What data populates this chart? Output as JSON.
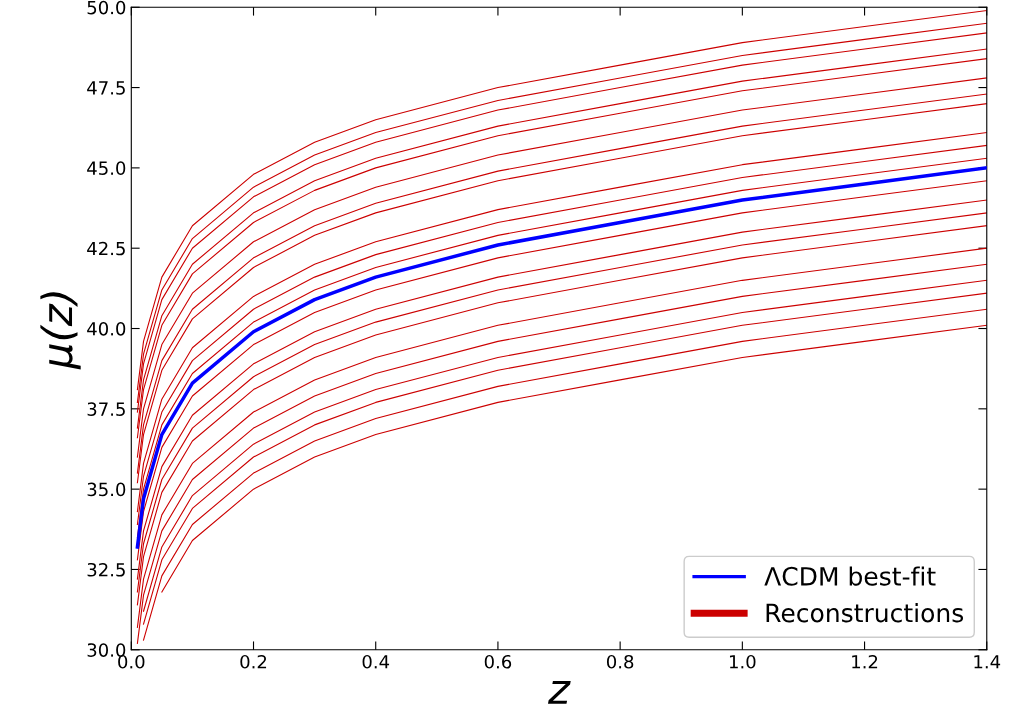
{
  "chart_data": {
    "type": "line",
    "xlabel": "z",
    "ylabel": "μ(z)",
    "x": [
      0.01,
      0.02,
      0.05,
      0.1,
      0.2,
      0.3,
      0.4,
      0.6,
      0.8,
      1.0,
      1.2,
      1.4
    ],
    "xlim": [
      0,
      1.4
    ],
    "ylim": [
      30,
      50
    ],
    "xticks": [
      {
        "value": 0,
        "label": "0.0"
      },
      {
        "value": 0.2,
        "label": "0.2"
      },
      {
        "value": 0.4,
        "label": "0.4"
      },
      {
        "value": 0.6,
        "label": "0.6"
      },
      {
        "value": 0.8,
        "label": "0.8"
      },
      {
        "value": 1.0,
        "label": "1.0"
      },
      {
        "value": 1.2,
        "label": "1.2"
      },
      {
        "value": 1.4,
        "label": "1.4"
      }
    ],
    "yticks": [
      {
        "value": 30,
        "label": "30.0"
      },
      {
        "value": 32.5,
        "label": "32.5"
      },
      {
        "value": 35,
        "label": "35.0"
      },
      {
        "value": 37.5,
        "label": "37.5"
      },
      {
        "value": 40,
        "label": "40.0"
      },
      {
        "value": 42.5,
        "label": "42.5"
      },
      {
        "value": 45,
        "label": "45.0"
      },
      {
        "value": 47.5,
        "label": "47.5"
      },
      {
        "value": 50,
        "label": "50.0"
      }
    ],
    "grid": false,
    "legend": "bottom right",
    "marker": "none",
    "line_style": "solid",
    "series": [
      {
        "name": "Reconstructions",
        "color": "#cc0000",
        "values": [
          38.1,
          39.6,
          41.6,
          43.2,
          44.8,
          45.8,
          46.5,
          47.5,
          48.2,
          48.9,
          49.4,
          49.9
        ]
      },
      {
        "color": "#cc0000",
        "values": [
          37.7,
          39.2,
          41.2,
          42.8,
          44.4,
          45.4,
          46.1,
          47.1,
          47.8,
          48.5,
          49.0,
          49.5
        ]
      },
      {
        "color": "#cc0000",
        "values": [
          37.4,
          38.9,
          40.9,
          42.5,
          44.1,
          45.1,
          45.8,
          46.8,
          47.5,
          48.2,
          48.7,
          49.2
        ]
      },
      {
        "color": "#cc0000",
        "values": [
          36.9,
          38.4,
          40.4,
          42.0,
          43.6,
          44.6,
          45.3,
          46.3,
          47.0,
          47.7,
          48.2,
          48.7
        ]
      },
      {
        "color": "#cc0000",
        "values": [
          36.6,
          38.1,
          40.1,
          41.7,
          43.3,
          44.3,
          45.0,
          46.0,
          46.7,
          47.4,
          47.9,
          48.4
        ]
      },
      {
        "color": "#cc0000",
        "values": [
          36.0,
          37.5,
          39.5,
          41.1,
          42.7,
          43.7,
          44.4,
          45.4,
          46.1,
          46.8,
          47.3,
          47.8
        ]
      },
      {
        "color": "#cc0000",
        "values": [
          35.5,
          37.0,
          39.0,
          40.6,
          42.2,
          43.2,
          43.9,
          44.9,
          45.6,
          46.3,
          46.8,
          47.3
        ]
      },
      {
        "color": "#cc0000",
        "values": [
          35.2,
          36.7,
          38.7,
          40.3,
          41.9,
          42.9,
          43.6,
          44.6,
          45.3,
          46.0,
          46.5,
          47.0
        ]
      },
      {
        "color": "#cc0000",
        "values": [
          34.3,
          35.8,
          37.8,
          39.4,
          41.0,
          42.0,
          42.7,
          43.7,
          44.4,
          45.1,
          45.6,
          46.1
        ]
      },
      {
        "color": "#cc0000",
        "values": [
          33.9,
          35.4,
          37.4,
          39.0,
          40.6,
          41.6,
          42.3,
          43.3,
          44.0,
          44.7,
          45.2,
          45.7
        ]
      },
      {
        "color": "#cc0000",
        "values": [
          33.5,
          35.0,
          37.0,
          38.6,
          40.2,
          41.2,
          41.9,
          42.9,
          43.6,
          44.3,
          44.8,
          45.3
        ]
      },
      {
        "color": "#cc0000",
        "values": [
          32.8,
          34.3,
          36.3,
          37.9,
          39.5,
          40.5,
          41.2,
          42.2,
          42.9,
          43.6,
          44.1,
          44.6
        ]
      },
      {
        "color": "#cc0000",
        "values": [
          32.2,
          33.7,
          35.7,
          37.3,
          38.9,
          39.9,
          40.6,
          41.6,
          42.3,
          43.0,
          43.5,
          44.0
        ]
      },
      {
        "color": "#cc0000",
        "values": [
          31.8,
          33.3,
          35.3,
          36.9,
          38.5,
          39.5,
          40.2,
          41.2,
          41.9,
          42.6,
          43.1,
          43.6
        ]
      },
      {
        "color": "#cc0000",
        "values": [
          31.4,
          32.9,
          34.9,
          36.5,
          38.1,
          39.1,
          39.8,
          40.8,
          41.5,
          42.2,
          42.7,
          43.2
        ]
      },
      {
        "color": "#cc0000",
        "values": [
          30.7,
          32.2,
          34.2,
          35.8,
          37.4,
          38.4,
          39.1,
          40.1,
          40.8,
          41.5,
          42.0,
          42.5
        ]
      },
      {
        "color": "#cc0000",
        "values": [
          30.2,
          31.7,
          33.7,
          35.3,
          36.9,
          37.9,
          38.6,
          39.6,
          40.3,
          41.0,
          41.5,
          42.0
        ]
      },
      {
        "color": "#cc0000",
        "values": [
          null,
          31.2,
          33.2,
          34.8,
          36.4,
          37.4,
          38.1,
          39.1,
          39.8,
          40.5,
          41.0,
          41.5
        ]
      },
      {
        "color": "#cc0000",
        "values": [
          null,
          30.8,
          32.8,
          34.4,
          36.0,
          37.0,
          37.7,
          38.7,
          39.4,
          40.1,
          40.6,
          41.1
        ]
      },
      {
        "color": "#cc0000",
        "values": [
          null,
          30.3,
          32.3,
          33.9,
          35.5,
          36.5,
          37.2,
          38.2,
          38.9,
          39.6,
          40.1,
          40.6
        ]
      },
      {
        "color": "#cc0000",
        "values": [
          null,
          null,
          31.8,
          33.4,
          35.0,
          36.0,
          36.7,
          37.7,
          38.4,
          39.1,
          39.6,
          40.1
        ]
      },
      {
        "name": "ΛCDM best-fit",
        "color": "#0000ff",
        "values": [
          33.2,
          34.7,
          36.7,
          38.3,
          39.9,
          40.9,
          41.6,
          42.6,
          43.3,
          44.0,
          44.5,
          45.0
        ]
      }
    ]
  }
}
